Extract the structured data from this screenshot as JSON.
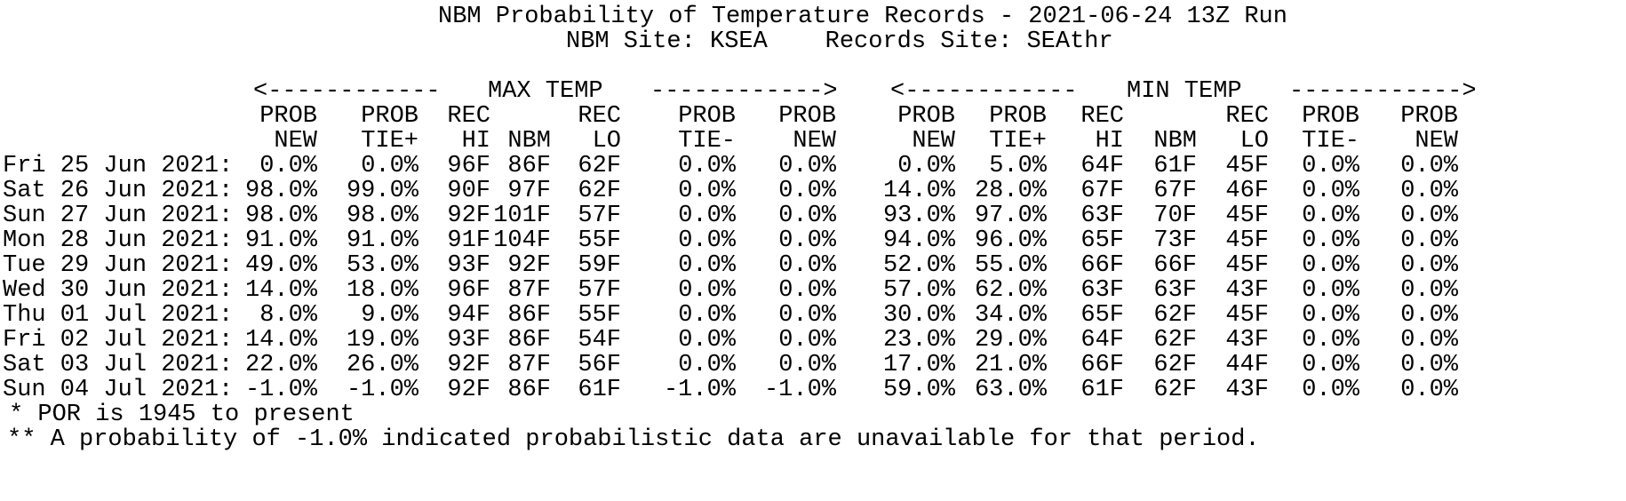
{
  "title": "NBM Probability of Temperature Records - 2021-06-24 13Z Run",
  "subtitle": "NBM Site: KSEA    Records Site: SEAthr",
  "sections": {
    "max": {
      "arrow_left": "<------------",
      "label": "MAX TEMP",
      "arrow_right": "------------>"
    },
    "min": {
      "arrow_left": "<------------",
      "label": "MIN TEMP",
      "arrow_right": "------------>"
    }
  },
  "columns": {
    "line1": [
      "PROB",
      "PROB",
      "REC",
      "",
      "REC",
      "PROB",
      "PROB"
    ],
    "line2": [
      "NEW",
      "TIE+",
      "HI",
      "NBM",
      "LO",
      "TIE-",
      "NEW"
    ],
    "keys": [
      "prob-new",
      "prob-tie-plus",
      "rec-hi",
      "nbm-forecast",
      "rec-lo",
      "prob-tie-minus",
      "prob-new"
    ]
  },
  "rows": [
    {
      "date": "Fri 25 Jun 2021:",
      "max": [
        "0.0%",
        "0.0%",
        "96F",
        "86F",
        "62F",
        "0.0%",
        "0.0%"
      ],
      "min": [
        "0.0%",
        "5.0%",
        "64F",
        "61F",
        "45F",
        "0.0%",
        "0.0%"
      ]
    },
    {
      "date": "Sat 26 Jun 2021:",
      "max": [
        "98.0%",
        "99.0%",
        "90F",
        "97F",
        "62F",
        "0.0%",
        "0.0%"
      ],
      "min": [
        "14.0%",
        "28.0%",
        "67F",
        "67F",
        "46F",
        "0.0%",
        "0.0%"
      ]
    },
    {
      "date": "Sun 27 Jun 2021:",
      "max": [
        "98.0%",
        "98.0%",
        "92F",
        "101F",
        "57F",
        "0.0%",
        "0.0%"
      ],
      "min": [
        "93.0%",
        "97.0%",
        "63F",
        "70F",
        "45F",
        "0.0%",
        "0.0%"
      ]
    },
    {
      "date": "Mon 28 Jun 2021:",
      "max": [
        "91.0%",
        "91.0%",
        "91F",
        "104F",
        "55F",
        "0.0%",
        "0.0%"
      ],
      "min": [
        "94.0%",
        "96.0%",
        "65F",
        "73F",
        "45F",
        "0.0%",
        "0.0%"
      ]
    },
    {
      "date": "Tue 29 Jun 2021:",
      "max": [
        "49.0%",
        "53.0%",
        "93F",
        "92F",
        "59F",
        "0.0%",
        "0.0%"
      ],
      "min": [
        "52.0%",
        "55.0%",
        "66F",
        "66F",
        "45F",
        "0.0%",
        "0.0%"
      ]
    },
    {
      "date": "Wed 30 Jun 2021:",
      "max": [
        "14.0%",
        "18.0%",
        "96F",
        "87F",
        "57F",
        "0.0%",
        "0.0%"
      ],
      "min": [
        "57.0%",
        "62.0%",
        "63F",
        "63F",
        "43F",
        "0.0%",
        "0.0%"
      ]
    },
    {
      "date": "Thu 01 Jul 2021:",
      "max": [
        "8.0%",
        "9.0%",
        "94F",
        "86F",
        "55F",
        "0.0%",
        "0.0%"
      ],
      "min": [
        "30.0%",
        "34.0%",
        "65F",
        "62F",
        "45F",
        "0.0%",
        "0.0%"
      ]
    },
    {
      "date": "Fri 02 Jul 2021:",
      "max": [
        "14.0%",
        "19.0%",
        "93F",
        "86F",
        "54F",
        "0.0%",
        "0.0%"
      ],
      "min": [
        "23.0%",
        "29.0%",
        "64F",
        "62F",
        "43F",
        "0.0%",
        "0.0%"
      ]
    },
    {
      "date": "Sat 03 Jul 2021:",
      "max": [
        "22.0%",
        "26.0%",
        "92F",
        "87F",
        "56F",
        "0.0%",
        "0.0%"
      ],
      "min": [
        "17.0%",
        "21.0%",
        "66F",
        "62F",
        "44F",
        "0.0%",
        "0.0%"
      ]
    },
    {
      "date": "Sun 04 Jul 2021:",
      "max": [
        "-1.0%",
        "-1.0%",
        "92F",
        "86F",
        "61F",
        "-1.0%",
        "-1.0%"
      ],
      "min": [
        "59.0%",
        "63.0%",
        "61F",
        "62F",
        "43F",
        "0.0%",
        "0.0%"
      ]
    }
  ],
  "footnotes": [
    "* POR is 1945 to present",
    "** A probability of -1.0% indicated probabilistic data are unavailable for that period."
  ]
}
